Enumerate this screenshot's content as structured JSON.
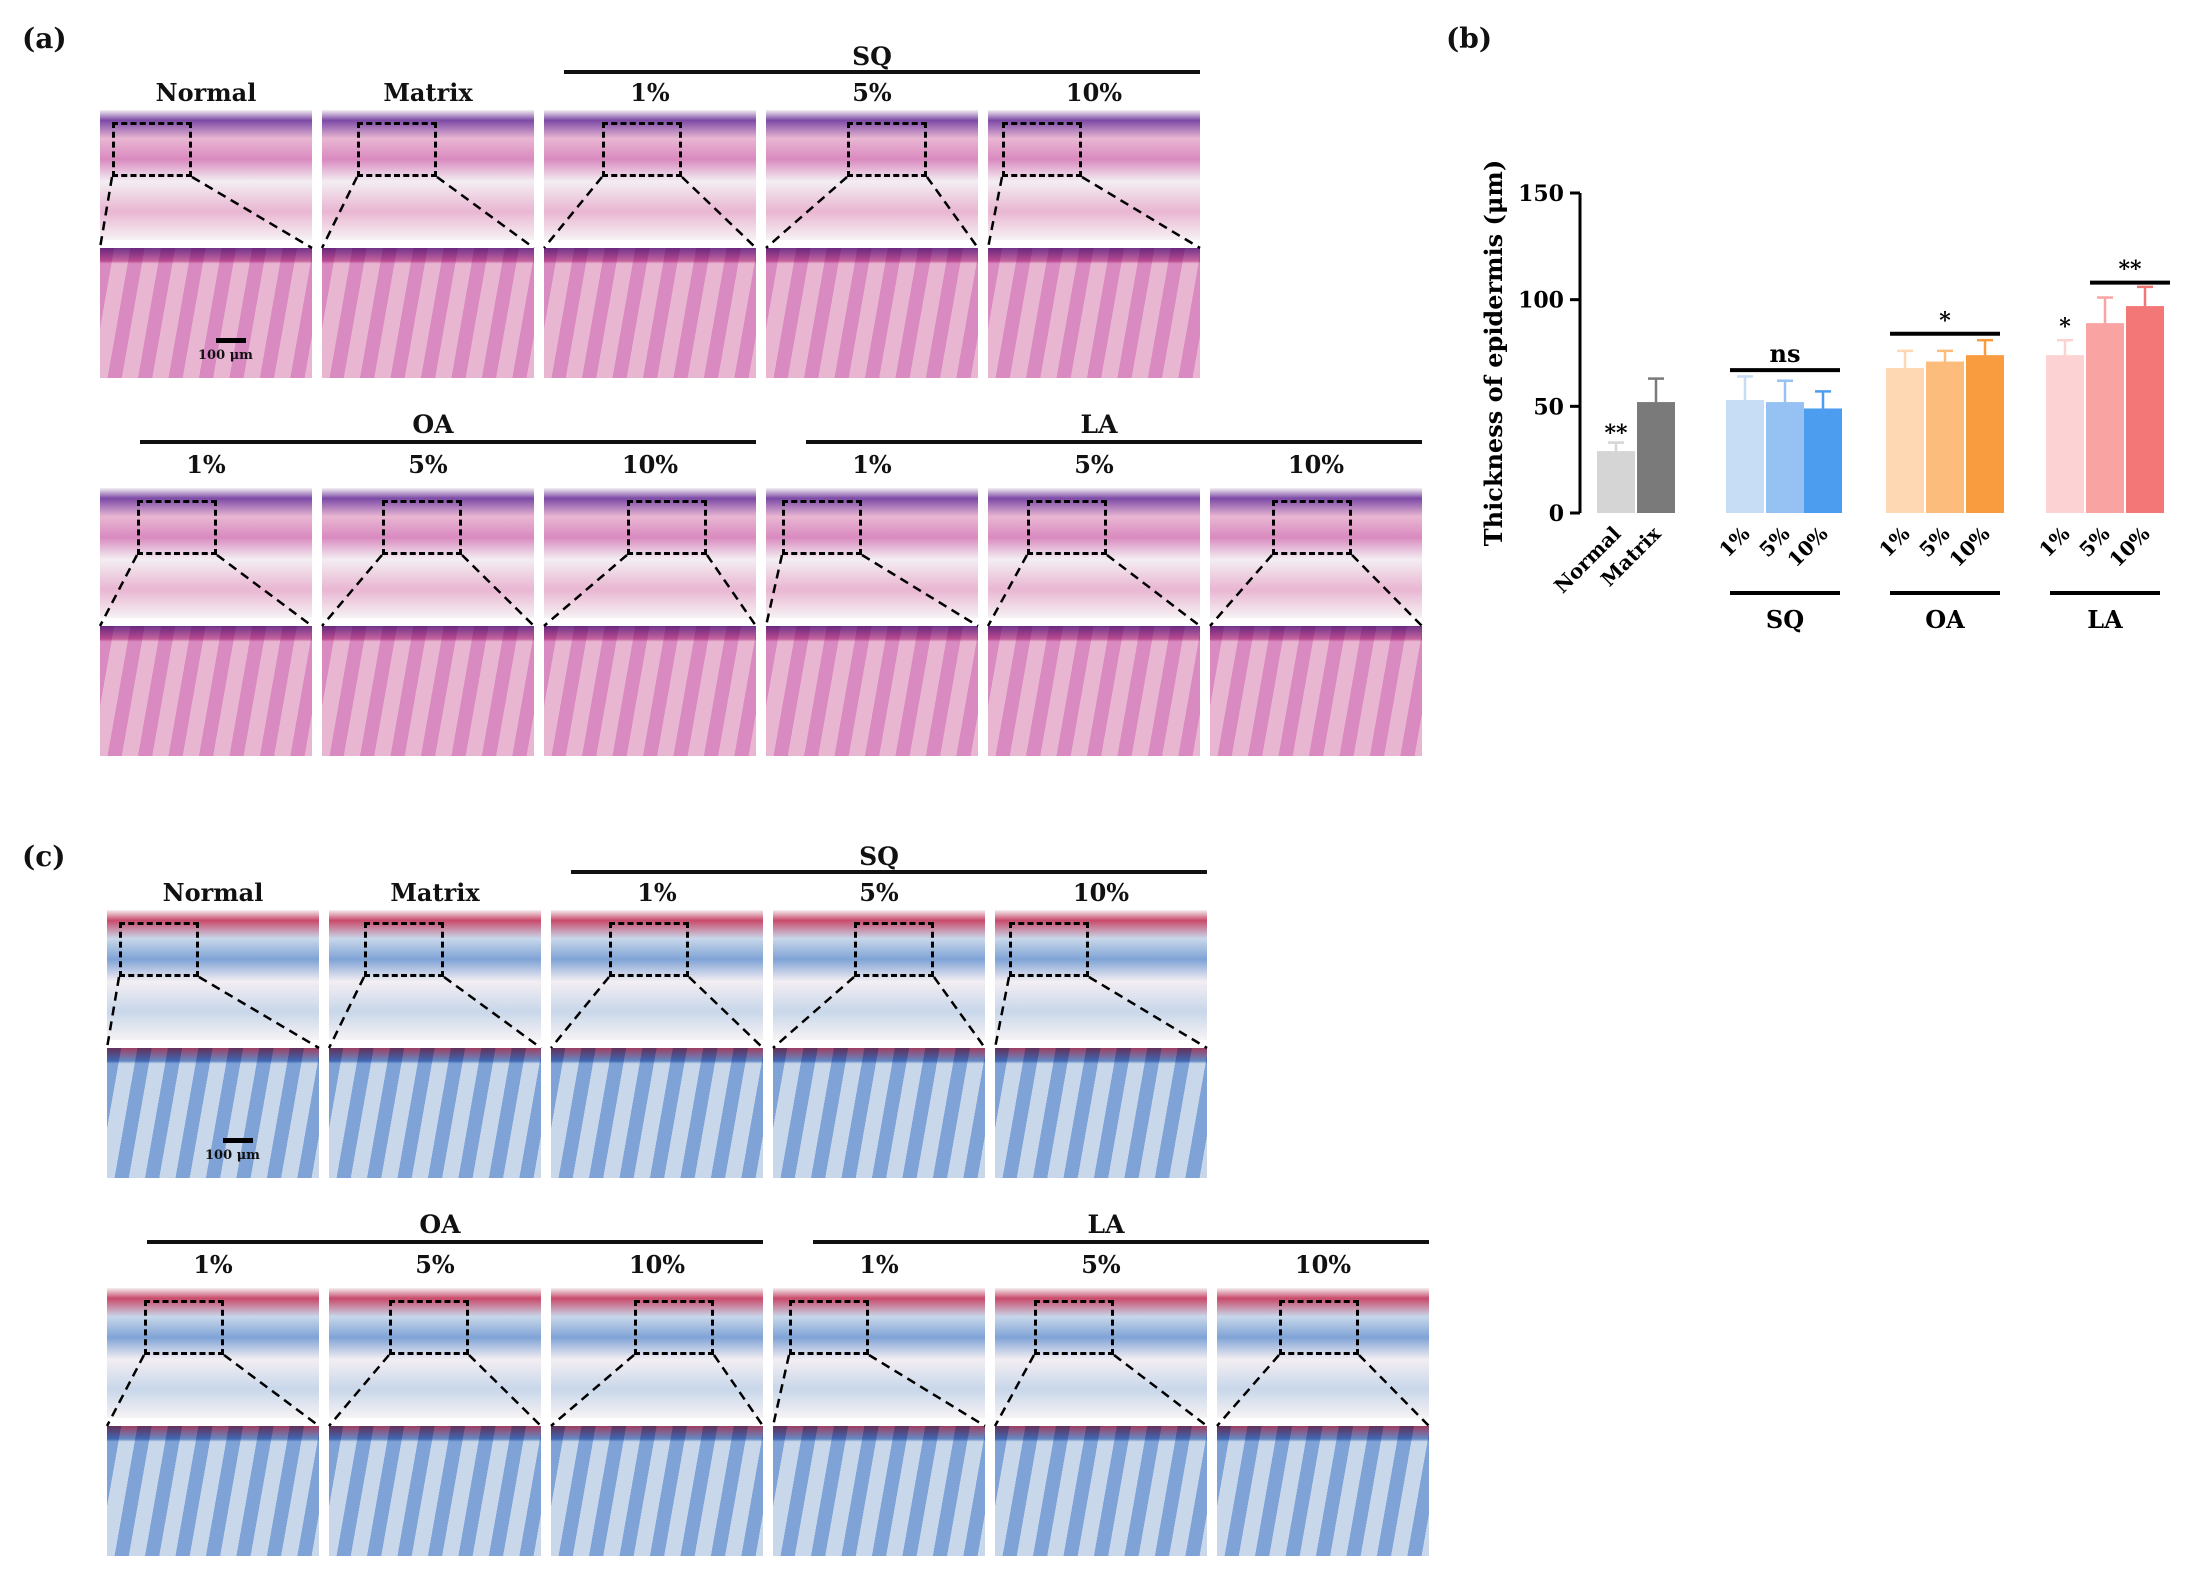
{
  "panel_labels": {
    "a": "(a)",
    "b": "(b)",
    "c": "(c)"
  },
  "he_panel": {
    "top_group": "SQ",
    "top_labels": [
      "Normal",
      "Matrix",
      "1%",
      "5%",
      "10%"
    ],
    "bottom_groups": [
      "OA",
      "LA"
    ],
    "bottom_labels": [
      "1%",
      "5%",
      "10%",
      "1%",
      "5%",
      "10%"
    ],
    "scale": "100 μm"
  },
  "mt_panel": {
    "top_group": "SQ",
    "top_labels": [
      "Normal",
      "Matrix",
      "1%",
      "5%",
      "10%"
    ],
    "bottom_groups": [
      "OA",
      "LA"
    ],
    "bottom_labels": [
      "1%",
      "5%",
      "10%",
      "1%",
      "5%",
      "10%"
    ],
    "scale": "100 μm"
  },
  "colors": {
    "he_low": "#e9b6d2",
    "he_high": "#d98ac0",
    "he_dark": "#7c4aa6",
    "mt_low": "#c8d7ea",
    "mt_high": "#7fa3d6",
    "mt_red": "#c94a6a"
  },
  "chart_data": {
    "type": "bar",
    "ylabel": "Thickness of epidermis (μm)",
    "ylim": [
      0,
      150
    ],
    "yticks": [
      "0",
      "50",
      "100",
      "150"
    ],
    "categories": [
      "Normal",
      "Matrix",
      "1%",
      "5%",
      "10%",
      "1%",
      "5%",
      "10%",
      "1%",
      "5%",
      "10%"
    ],
    "values": [
      29,
      52,
      53,
      52,
      49,
      68,
      71,
      74,
      74,
      89,
      97
    ],
    "errors": [
      4,
      11,
      11,
      10,
      8,
      8,
      5,
      7,
      7,
      12,
      9
    ],
    "colors": [
      "#d5d5d5",
      "#7a7a7a",
      "#c7dcf5",
      "#95c1f3",
      "#4c9cf0",
      "#fdd8b3",
      "#fcbd7c",
      "#f89c3f",
      "#fdd2d2",
      "#f9a3a3",
      "#f47777"
    ],
    "group_labels": [
      "SQ",
      "OA",
      "LA"
    ],
    "annotations": {
      "normal": "**",
      "sq": "ns",
      "oa": "*",
      "la1": "*",
      "la": "**"
    }
  }
}
